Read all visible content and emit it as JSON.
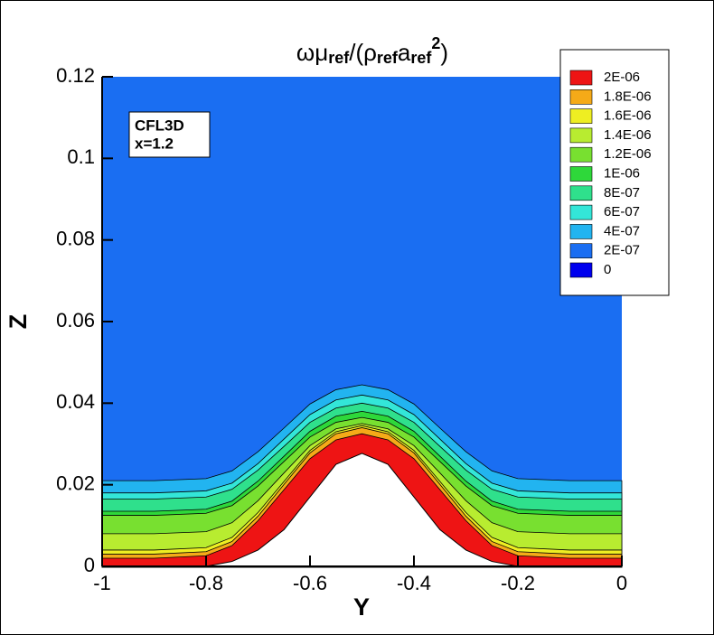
{
  "chart_data": {
    "type": "contour",
    "title_parts": [
      "ω",
      "μ",
      "ref",
      "/(",
      "ρ",
      "ref",
      "a",
      "ref",
      "2",
      ")"
    ],
    "title_scripts": [
      "base",
      "base",
      "sub",
      "base",
      "base",
      "sub",
      "base",
      "sub",
      "sup",
      "base"
    ],
    "x_label": "Y",
    "y_label": "Z",
    "annotation": [
      "CFL3D",
      "x=1.2"
    ],
    "xlim": [
      -1,
      0
    ],
    "ylim": [
      0,
      0.12
    ],
    "xticks": [
      -1,
      -0.8,
      -0.6,
      -0.4,
      -0.2,
      0
    ],
    "yticks": [
      0,
      0.02,
      0.04,
      0.06,
      0.08,
      0.1,
      0.12
    ],
    "levels": [
      0,
      {
        "value": 2e-07,
        "label": "2E-07"
      },
      {
        "value": 4e-07,
        "label": "4E-07"
      },
      {
        "value": 6e-07,
        "label": "6E-07"
      },
      {
        "value": 8e-07,
        "label": "8E-07"
      },
      {
        "value": 1e-06,
        "label": "1E-06"
      },
      {
        "value": 1.2e-06,
        "label": "1.2E-06"
      },
      {
        "value": 1.4e-06,
        "label": "1.4E-06"
      },
      {
        "value": 1.6e-06,
        "label": "1.6E-06"
      },
      {
        "value": 1.8e-06,
        "label": "1.8E-06"
      },
      {
        "value": 2e-06,
        "label": "2E-06"
      }
    ],
    "colors": [
      "#0000ee",
      "#1a6ef2",
      "#22b4f0",
      "#33e6d8",
      "#2fe08c",
      "#2ed83a",
      "#78e030",
      "#b8ec30",
      "#eeee22",
      "#f5aa18",
      "#ee1414"
    ],
    "x": [
      -1,
      -0.9,
      -0.8,
      -0.75,
      -0.7,
      -0.65,
      -0.6,
      -0.55,
      -0.5,
      -0.45,
      -0.4,
      -0.35,
      -0.3,
      -0.25,
      -0.2,
      -0.1,
      0
    ],
    "contours": [
      [
        0.021,
        0.021,
        0.0215,
        0.0234,
        0.0281,
        0.0339,
        0.0398,
        0.0433,
        0.0445,
        0.0433,
        0.0398,
        0.0339,
        0.0281,
        0.0234,
        0.0215,
        0.021,
        0.021
      ],
      [
        0.018,
        0.018,
        0.0185,
        0.0204,
        0.0252,
        0.0312,
        0.0372,
        0.0408,
        0.042,
        0.0408,
        0.0372,
        0.0312,
        0.0252,
        0.0204,
        0.0185,
        0.018,
        0.018
      ],
      [
        0.0165,
        0.0165,
        0.017,
        0.0189,
        0.0236,
        0.0294,
        0.0353,
        0.0388,
        0.04,
        0.0388,
        0.0353,
        0.0294,
        0.0236,
        0.0189,
        0.017,
        0.0165,
        0.0165
      ],
      [
        0.0135,
        0.0135,
        0.014,
        0.016,
        0.0209,
        0.027,
        0.0331,
        0.0368,
        0.038,
        0.0368,
        0.0331,
        0.027,
        0.0209,
        0.016,
        0.014,
        0.0135,
        0.0135
      ],
      [
        0.0125,
        0.0125,
        0.013,
        0.0149,
        0.0197,
        0.0257,
        0.0317,
        0.0353,
        0.0365,
        0.0353,
        0.0317,
        0.0257,
        0.0197,
        0.0149,
        0.013,
        0.0125,
        0.0125
      ],
      [
        0.008,
        0.008,
        0.0085,
        0.0107,
        0.0161,
        0.0229,
        0.0296,
        0.0337,
        0.035,
        0.0337,
        0.0296,
        0.0229,
        0.0161,
        0.0107,
        0.0085,
        0.008,
        0.008
      ],
      [
        0.004,
        0.004,
        0.0046,
        0.0071,
        0.0132,
        0.0208,
        0.0284,
        0.033,
        0.0345,
        0.033,
        0.0284,
        0.0208,
        0.0132,
        0.0071,
        0.0046,
        0.004,
        0.004
      ],
      [
        0.003,
        0.003,
        0.0036,
        0.0061,
        0.0123,
        0.0201,
        0.0278,
        0.0325,
        0.034,
        0.0325,
        0.0278,
        0.0201,
        0.0123,
        0.0061,
        0.0036,
        0.003,
        0.003
      ],
      [
        0.002,
        0.002,
        0.0026,
        0.0051,
        0.0112,
        0.0188,
        0.0264,
        0.031,
        0.0325,
        0.031,
        0.0264,
        0.0188,
        0.0112,
        0.0051,
        0.0026,
        0.002,
        0.002
      ]
    ],
    "wall": [
      0,
      0,
      0,
      0.0012,
      0.004,
      0.009,
      0.017,
      0.025,
      0.0277,
      0.025,
      0.017,
      0.009,
      0.004,
      0.0012,
      0,
      0,
      0
    ]
  }
}
